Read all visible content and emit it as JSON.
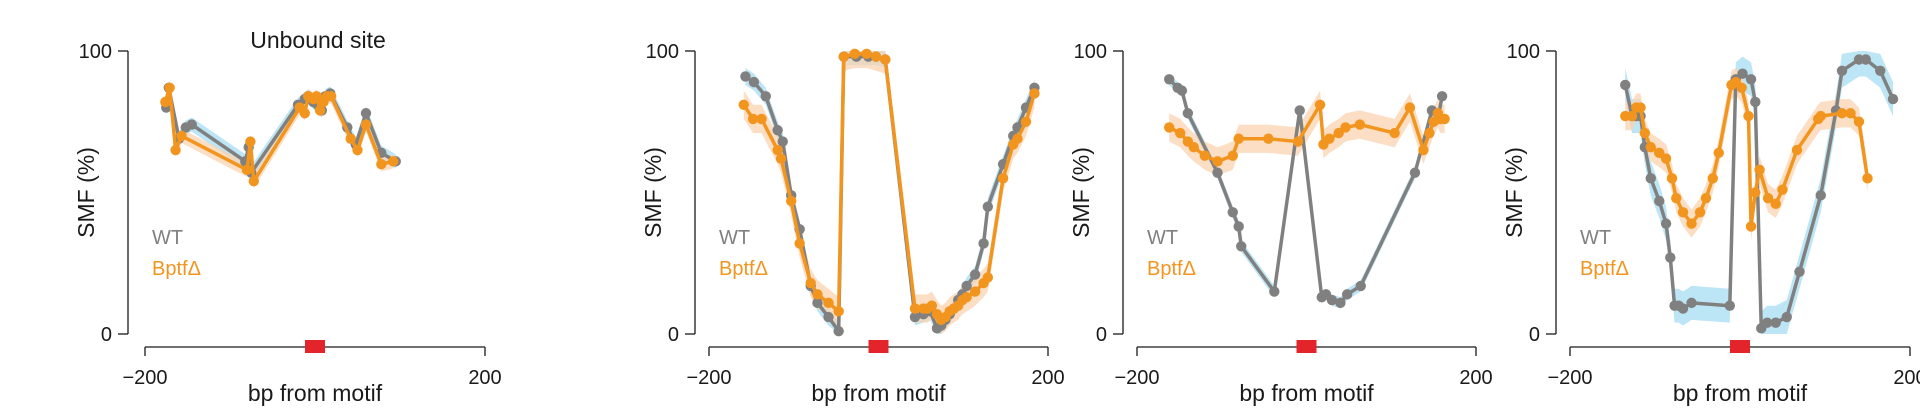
{
  "colors": {
    "wt": "#808080",
    "bptf": "#f2951f",
    "wt_band": "#a6dcf2",
    "bptf_band": "#f9d3b0",
    "motif": "#e3242b",
    "axis": "#1a1a1a"
  },
  "legend": {
    "wt": "WT",
    "bptf": "BptfΔ"
  },
  "chart_data": [
    {
      "type": "line",
      "title": "Unbound site",
      "xlabel": "bp from motif",
      "ylabel": "SMF (%)",
      "xlim": [
        -200,
        200
      ],
      "ylim": [
        0,
        100
      ],
      "xticks": [
        "−200",
        "200"
      ],
      "yticks": [
        "0",
        "100"
      ],
      "motif_marker": {
        "x": 0,
        "color": "#e3242b"
      },
      "series": [
        {
          "name": "WT",
          "color": "#808080",
          "x": [
            -175,
            -172,
            -160,
            -152,
            -145,
            -82,
            -78,
            -75,
            -20,
            -12,
            -8,
            -2,
            3,
            8,
            12,
            18,
            38,
            48,
            60,
            78,
            95
          ],
          "y": [
            80,
            87,
            69,
            73,
            74,
            61,
            66,
            57,
            81,
            83,
            84,
            82,
            81,
            79,
            84,
            85,
            73,
            67,
            78,
            64,
            61
          ],
          "band": 2.5
        },
        {
          "name": "BptfΔ",
          "color": "#f2951f",
          "x": [
            -176,
            -171,
            -164,
            -157,
            -80,
            -76,
            -72,
            -18,
            -12,
            -8,
            -2,
            2,
            6,
            10,
            14,
            19,
            42,
            50,
            60,
            78,
            92
          ],
          "y": [
            82,
            87,
            65,
            70,
            58,
            68,
            54,
            80,
            78,
            84,
            83,
            84,
            79,
            82,
            84,
            84,
            69,
            65,
            74,
            60,
            61
          ],
          "band": 2.5
        }
      ]
    },
    {
      "type": "line",
      "title": "",
      "xlabel": "bp from motif",
      "ylabel": "SMF (%)",
      "xlim": [
        -200,
        200
      ],
      "ylim": [
        0,
        100
      ],
      "xticks": [
        "−200",
        "200"
      ],
      "yticks": [
        "0",
        "100"
      ],
      "motif_marker": {
        "x": 0,
        "color": "#e3242b"
      },
      "series": [
        {
          "name": "WT",
          "color": "#808080",
          "x": [
            -157,
            -147,
            -133,
            -119,
            -113,
            -103,
            -93,
            -80,
            -72,
            -59,
            -47,
            -41,
            -26,
            -12,
            -3,
            8,
            43,
            53,
            61,
            69,
            74,
            79,
            84,
            89,
            94,
            99,
            104,
            114,
            124,
            129,
            147,
            159,
            164,
            174,
            184
          ],
          "y": [
            91,
            89,
            84,
            72,
            68,
            49,
            37,
            17,
            11,
            6,
            1,
            98,
            98,
            98,
            98,
            97,
            6,
            7,
            8,
            2,
            3,
            5,
            7,
            9,
            12,
            14,
            17,
            21,
            32,
            45,
            60,
            70,
            73,
            80,
            87
          ],
          "band": 3
        },
        {
          "name": "BptfΔ",
          "color": "#f2951f",
          "x": [
            -159,
            -148,
            -138,
            -119,
            -115,
            -103,
            -93,
            -80,
            -72,
            -59,
            -47,
            -41,
            -28,
            -14,
            -3,
            8,
            43,
            53,
            58,
            63,
            69,
            74,
            79,
            84,
            89,
            94,
            99,
            104,
            114,
            124,
            129,
            147,
            159,
            164,
            174,
            184
          ],
          "y": [
            81,
            76,
            76,
            65,
            62,
            47,
            32,
            18,
            14,
            11,
            8,
            98,
            99,
            99,
            98,
            97,
            9,
            9,
            9,
            10,
            7,
            5,
            6,
            8,
            9,
            10,
            12,
            13,
            15,
            18,
            20,
            55,
            67,
            69,
            75,
            85
          ],
          "band": 5
        }
      ]
    },
    {
      "type": "line",
      "title": "",
      "xlabel": "bp from motif",
      "ylabel": "SMF (%)",
      "xlim": [
        -200,
        200
      ],
      "ylim": [
        0,
        100
      ],
      "xticks": [
        "−200",
        "200"
      ],
      "yticks": [
        "0",
        "100"
      ],
      "motif_marker": {
        "x": 0,
        "color": "#e3242b"
      },
      "series": [
        {
          "name": "WT",
          "color": "#808080",
          "x": [
            -162,
            -152,
            -147,
            -140,
            -105,
            -87,
            -80,
            -77,
            -38,
            -8,
            18,
            23,
            30,
            40,
            48,
            64,
            128,
            148,
            155,
            160
          ],
          "y": [
            90,
            87,
            86,
            78,
            57,
            43,
            38,
            31,
            15,
            79,
            13,
            14,
            12,
            11,
            14,
            17,
            57,
            79,
            76,
            84
          ],
          "band": 2
        },
        {
          "name": "BptfΔ",
          "color": "#f2951f",
          "x": [
            -162,
            -149,
            -140,
            -133,
            -120,
            -105,
            -87,
            -80,
            -45,
            -10,
            16,
            20,
            27,
            38,
            46,
            63,
            104,
            122,
            138,
            145,
            150,
            155,
            158,
            163
          ],
          "y": [
            73,
            71,
            68,
            66,
            63,
            61,
            63,
            69,
            69,
            68,
            81,
            67,
            69,
            71,
            73,
            74,
            71,
            80,
            65,
            71,
            75,
            78,
            76,
            76
          ],
          "band": 5
        }
      ]
    },
    {
      "type": "line",
      "title": "",
      "xlabel": "bp from motif",
      "ylabel": "SMF (%)",
      "xlim": [
        -200,
        200
      ],
      "ylim": [
        0,
        100
      ],
      "xticks": [
        "−200",
        "200"
      ],
      "yticks": [
        "0",
        "100"
      ],
      "motif_marker": {
        "x": 0,
        "color": "#e3242b"
      },
      "series": [
        {
          "name": "WT",
          "color": "#808080",
          "x": [
            -135,
            -127,
            -122,
            -117,
            -112,
            -105,
            -95,
            -87,
            -82,
            -77,
            -72,
            -67,
            -57,
            -12,
            -5,
            3,
            13,
            18,
            25,
            32,
            42,
            55,
            70,
            95,
            113,
            120,
            140,
            148,
            165,
            180
          ],
          "y": [
            88,
            77,
            77,
            77,
            66,
            55,
            47,
            39,
            27,
            10,
            10,
            9,
            11,
            10,
            90,
            92,
            90,
            82,
            2,
            4,
            4,
            6,
            22,
            49,
            79,
            93,
            97,
            97,
            93,
            83
          ],
          "band": 6
        },
        {
          "name": "BptfΔ",
          "color": "#f2951f",
          "x": [
            -135,
            -127,
            -122,
            -117,
            -112,
            -105,
            -95,
            -87,
            -80,
            -75,
            -67,
            -57,
            -47,
            -40,
            -32,
            -25,
            -10,
            -5,
            2,
            10,
            13,
            18,
            23,
            33,
            42,
            50,
            67,
            92,
            95,
            120,
            130,
            140,
            150
          ],
          "y": [
            77,
            77,
            80,
            80,
            71,
            66,
            64,
            62,
            55,
            48,
            43,
            39,
            43,
            48,
            55,
            64,
            88,
            89,
            87,
            77,
            38,
            50,
            58,
            48,
            46,
            51,
            65,
            76,
            77,
            78,
            78,
            75,
            55
          ],
          "band": 5
        }
      ]
    }
  ]
}
